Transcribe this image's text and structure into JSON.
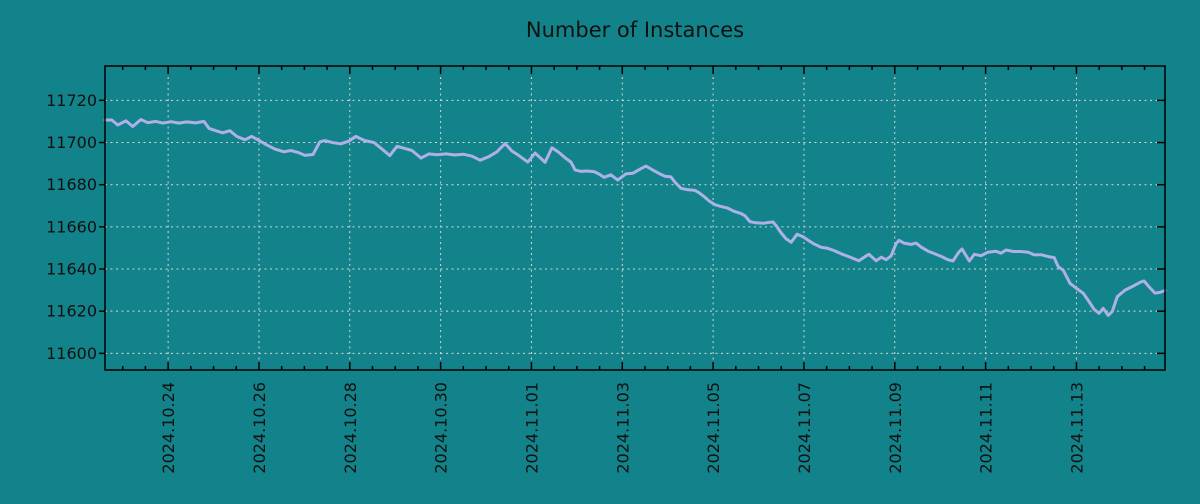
{
  "title": "Number of Instances",
  "colors": {
    "background": "#12838a",
    "line": "#aeb0e8",
    "grid": "#d6d6d6",
    "axis": "#000000",
    "text": "#111111"
  },
  "chart_data": {
    "type": "line",
    "title": "Number of Instances",
    "grid": true,
    "legend": null,
    "x_axis": {
      "unit": "days since 2024-10-24",
      "range": [
        -1.39,
        21.95
      ],
      "major_tick_step_days": 2,
      "minor_tick_step_days": 0.5,
      "tick_label_days": [
        0,
        2,
        4,
        6,
        8,
        10,
        12,
        14,
        16,
        18,
        20
      ],
      "tick_labels": [
        "2024.10.24",
        "2024.10.26",
        "2024.10.28",
        "2024.10.30",
        "2024.11.01",
        "2024.11.03",
        "2024.11.05",
        "2024.11.07",
        "2024.11.09",
        "2024.11.11",
        "2024.11.13"
      ]
    },
    "y_axis": {
      "range": [
        11592.1,
        11736.3
      ],
      "tick_values": [
        11600,
        11620,
        11640,
        11660,
        11680,
        11700,
        11720
      ]
    },
    "series": [
      {
        "name": "instances",
        "color": "#aeb0e8",
        "points": [
          [
            -1.39,
            11710.7
          ],
          [
            -1.24,
            11710.7
          ],
          [
            -1.11,
            11708.3
          ],
          [
            -0.93,
            11710.3
          ],
          [
            -0.78,
            11707.6
          ],
          [
            -0.6,
            11710.9
          ],
          [
            -0.45,
            11709.4
          ],
          [
            -0.27,
            11710.0
          ],
          [
            -0.12,
            11709.2
          ],
          [
            0.06,
            11709.9
          ],
          [
            0.24,
            11709.2
          ],
          [
            0.41,
            11709.8
          ],
          [
            0.61,
            11709.3
          ],
          [
            0.79,
            11710.0
          ],
          [
            0.9,
            11706.7
          ],
          [
            1.05,
            11705.6
          ],
          [
            1.2,
            11704.6
          ],
          [
            1.36,
            11705.6
          ],
          [
            1.51,
            11702.9
          ],
          [
            1.69,
            11701.3
          ],
          [
            1.84,
            11702.9
          ],
          [
            2.0,
            11701.0
          ],
          [
            2.15,
            11699.1
          ],
          [
            2.35,
            11696.9
          ],
          [
            2.55,
            11695.6
          ],
          [
            2.7,
            11696.2
          ],
          [
            2.86,
            11695.3
          ],
          [
            3.01,
            11693.9
          ],
          [
            3.19,
            11694.3
          ],
          [
            3.34,
            11700.3
          ],
          [
            3.45,
            11700.9
          ],
          [
            3.63,
            11699.9
          ],
          [
            3.8,
            11699.4
          ],
          [
            3.98,
            11700.7
          ],
          [
            4.13,
            11702.9
          ],
          [
            4.33,
            11700.9
          ],
          [
            4.53,
            11700.0
          ],
          [
            4.71,
            11696.9
          ],
          [
            4.88,
            11693.8
          ],
          [
            5.04,
            11698.2
          ],
          [
            5.19,
            11697.3
          ],
          [
            5.37,
            11696.2
          ],
          [
            5.57,
            11692.6
          ],
          [
            5.74,
            11694.6
          ],
          [
            5.92,
            11694.2
          ],
          [
            6.12,
            11694.6
          ],
          [
            6.31,
            11694.1
          ],
          [
            6.51,
            11694.4
          ],
          [
            6.69,
            11693.5
          ],
          [
            6.87,
            11691.6
          ],
          [
            7.06,
            11693.3
          ],
          [
            7.24,
            11695.6
          ],
          [
            7.42,
            11699.5
          ],
          [
            7.57,
            11696.0
          ],
          [
            7.72,
            11693.9
          ],
          [
            7.92,
            11690.7
          ],
          [
            8.08,
            11695.0
          ],
          [
            8.21,
            11692.4
          ],
          [
            8.3,
            11690.6
          ],
          [
            8.45,
            11697.5
          ],
          [
            8.6,
            11695.4
          ],
          [
            8.76,
            11692.4
          ],
          [
            8.87,
            11690.7
          ],
          [
            8.96,
            11687.0
          ],
          [
            9.09,
            11686.3
          ],
          [
            9.22,
            11686.5
          ],
          [
            9.38,
            11686.2
          ],
          [
            9.49,
            11685.0
          ],
          [
            9.6,
            11683.5
          ],
          [
            9.75,
            11684.7
          ],
          [
            9.9,
            11682.2
          ],
          [
            10.08,
            11685.1
          ],
          [
            10.23,
            11685.4
          ],
          [
            10.41,
            11687.6
          ],
          [
            10.52,
            11688.8
          ],
          [
            10.67,
            11687.0
          ],
          [
            10.81,
            11685.3
          ],
          [
            10.94,
            11684.0
          ],
          [
            11.07,
            11683.7
          ],
          [
            11.16,
            11681.2
          ],
          [
            11.29,
            11678.3
          ],
          [
            11.45,
            11677.6
          ],
          [
            11.6,
            11677.3
          ],
          [
            11.69,
            11676.2
          ],
          [
            11.8,
            11674.4
          ],
          [
            11.91,
            11672.3
          ],
          [
            12.04,
            11670.5
          ],
          [
            12.17,
            11669.7
          ],
          [
            12.31,
            11669.0
          ],
          [
            12.46,
            11667.4
          ],
          [
            12.61,
            11666.4
          ],
          [
            12.7,
            11665.3
          ],
          [
            12.81,
            11662.5
          ],
          [
            12.94,
            11661.9
          ],
          [
            13.1,
            11661.7
          ],
          [
            13.23,
            11662.1
          ],
          [
            13.32,
            11662.3
          ],
          [
            13.41,
            11659.9
          ],
          [
            13.5,
            11657.1
          ],
          [
            13.61,
            11654.3
          ],
          [
            13.72,
            11652.7
          ],
          [
            13.85,
            11656.5
          ],
          [
            13.98,
            11655.3
          ],
          [
            14.09,
            11653.7
          ],
          [
            14.22,
            11651.9
          ],
          [
            14.38,
            11650.3
          ],
          [
            14.53,
            11649.8
          ],
          [
            14.66,
            11648.8
          ],
          [
            14.82,
            11647.2
          ],
          [
            14.97,
            11646.0
          ],
          [
            15.1,
            11644.9
          ],
          [
            15.21,
            11643.9
          ],
          [
            15.37,
            11646.2
          ],
          [
            15.43,
            11647.0
          ],
          [
            15.59,
            11643.9
          ],
          [
            15.7,
            11645.6
          ],
          [
            15.81,
            11644.4
          ],
          [
            15.92,
            11646.2
          ],
          [
            16.03,
            11652.0
          ],
          [
            16.09,
            11653.6
          ],
          [
            16.2,
            11652.3
          ],
          [
            16.36,
            11651.7
          ],
          [
            16.47,
            11652.3
          ],
          [
            16.58,
            11650.4
          ],
          [
            16.73,
            11648.5
          ],
          [
            16.86,
            11647.4
          ],
          [
            17.02,
            11646.0
          ],
          [
            17.17,
            11644.4
          ],
          [
            17.28,
            11643.8
          ],
          [
            17.41,
            11648.0
          ],
          [
            17.48,
            11649.5
          ],
          [
            17.64,
            11643.8
          ],
          [
            17.75,
            11647.0
          ],
          [
            17.9,
            11646.3
          ],
          [
            18.05,
            11648.0
          ],
          [
            18.23,
            11648.4
          ],
          [
            18.34,
            11647.5
          ],
          [
            18.45,
            11649.0
          ],
          [
            18.61,
            11648.3
          ],
          [
            18.78,
            11648.3
          ],
          [
            18.94,
            11648.0
          ],
          [
            19.07,
            11646.7
          ],
          [
            19.22,
            11646.8
          ],
          [
            19.38,
            11645.9
          ],
          [
            19.51,
            11645.4
          ],
          [
            19.6,
            11641.0
          ],
          [
            19.71,
            11639.4
          ],
          [
            19.86,
            11633.2
          ],
          [
            19.99,
            11631.0
          ],
          [
            20.15,
            11628.5
          ],
          [
            20.28,
            11624.4
          ],
          [
            20.39,
            11620.8
          ],
          [
            20.5,
            11619.0
          ],
          [
            20.59,
            11621.3
          ],
          [
            20.7,
            11618.0
          ],
          [
            20.79,
            11619.9
          ],
          [
            20.9,
            11626.9
          ],
          [
            21.07,
            11630.0
          ],
          [
            21.25,
            11631.9
          ],
          [
            21.42,
            11633.9
          ],
          [
            21.49,
            11634.3
          ],
          [
            21.6,
            11631.5
          ],
          [
            21.73,
            11628.6
          ],
          [
            21.84,
            11628.9
          ],
          [
            21.95,
            11629.8
          ]
        ]
      }
    ]
  }
}
